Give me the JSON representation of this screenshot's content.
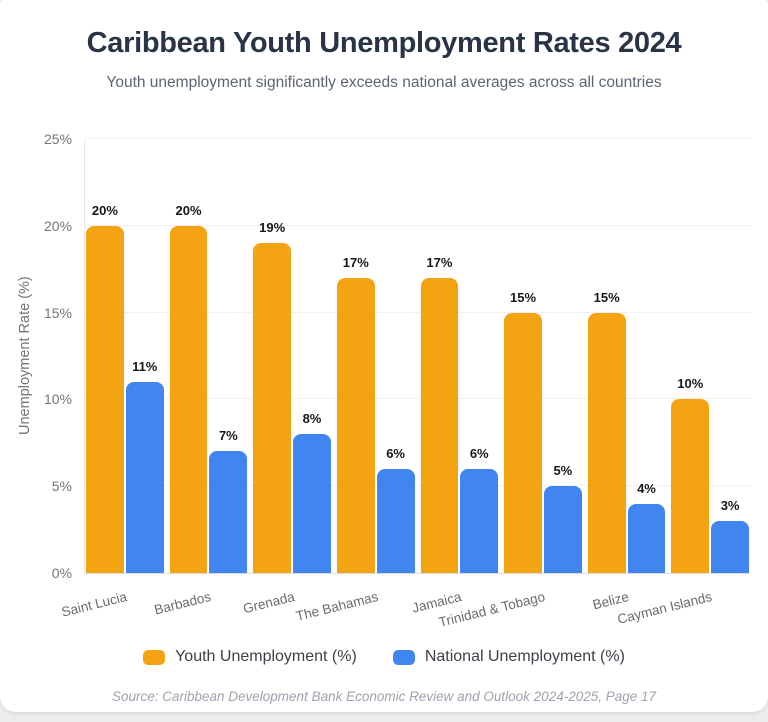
{
  "page": {
    "title": "Caribbean Youth Unemployment Rates 2024",
    "subtitle": "Youth unemployment significantly exceeds national averages across all countries",
    "source": "Source: Caribbean Development Bank Economic Review and Outlook 2024-2025, Page 17"
  },
  "chart_data": {
    "type": "bar",
    "title": "Caribbean Youth Unemployment Rates 2024",
    "subtitle": "Youth unemployment significantly exceeds national averages across all countries",
    "categories": [
      "Saint Lucia",
      "Barbados",
      "Grenada",
      "The Bahamas",
      "Jamaica",
      "Trinidad & Tobago",
      "Belize",
      "Cayman Islands"
    ],
    "series": [
      {
        "name": "Youth Unemployment (%)",
        "color": "#F4A412",
        "values": [
          20,
          20,
          19,
          17,
          17,
          15,
          15,
          10
        ]
      },
      {
        "name": "National Unemployment (%)",
        "color": "#4185F0",
        "values": [
          11,
          7,
          8,
          6,
          6,
          5,
          4,
          3
        ]
      }
    ],
    "xlabel": "",
    "ylabel": "Unemployment Rate (%)",
    "ylim": [
      0,
      25
    ],
    "yticks": [
      0,
      5,
      10,
      15,
      20,
      25
    ],
    "ytick_suffix": "%",
    "bar_label_suffix": "%",
    "grid": true,
    "legend_position": "bottom",
    "source": "Source: Caribbean Development Bank Economic Review and Outlook 2024-2025, Page 17"
  }
}
